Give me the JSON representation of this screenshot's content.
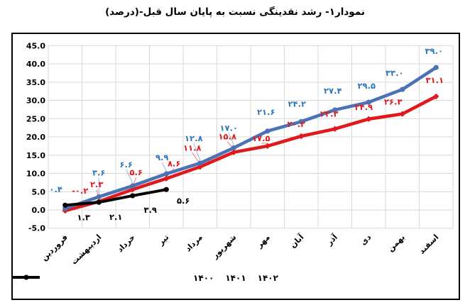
{
  "page": {
    "title": "نمودار۱- رشد نقدینگی نسبت به پایان سال قبل-(درصد)"
  },
  "chart_data": {
    "type": "line",
    "title": "نمودار۱- رشد نقدینگی نسبت به پایان سال قبل-(درصد)",
    "categories": [
      "فروردین",
      "اردیبهشت",
      "خرداد",
      "تیر",
      "مرداد",
      "شهریور",
      "مهر",
      "آبان",
      "آذر",
      "دی",
      "بهمن",
      "اسفند"
    ],
    "series": [
      {
        "name": "۱۴۰۰",
        "color": "#4a72b4",
        "label_color": "#2e78ba",
        "marker": "circle",
        "values": [
          0.4,
          3.6,
          6.6,
          9.9,
          12.8,
          17.0,
          21.6,
          24.2,
          27.4,
          29.5,
          33.0,
          39.0
        ],
        "labels": [
          "۰.۴",
          "۳.۶",
          "۶.۶",
          "۹.۹",
          "۱۲.۸",
          "۱۷.۰",
          "۲۱.۶",
          "۲۴.۲",
          "۲۷.۴",
          "۲۹.۵",
          "۳۳.۰",
          "۳۹.۰"
        ]
      },
      {
        "name": "۱۴۰۱",
        "color": "#e0191c",
        "label_color": "#e0191c",
        "marker": "diamond",
        "values": [
          -0.2,
          2.3,
          5.6,
          8.6,
          11.8,
          15.8,
          17.5,
          20.2,
          22.2,
          24.9,
          26.3,
          31.1
        ],
        "labels": [
          "-۰.۲",
          "۲.۳",
          "۵.۶",
          "۸.۶",
          "۱۱.۸",
          "۱۵.۸",
          "۱۷.۵",
          "۲۰.۲",
          "۲۲.۲",
          "۲۴.۹",
          "۲۶.۳",
          "۳۱.۱"
        ]
      },
      {
        "name": "۱۴۰۲",
        "color": "#000000",
        "label_color": "#000000",
        "marker": "circle",
        "values": [
          1.3,
          2.1,
          3.9,
          5.6
        ],
        "labels": [
          "۱.۳",
          "۲.۱",
          "۳.۹",
          "۵.۶"
        ]
      }
    ],
    "y_axis": {
      "min": -5,
      "max": 45,
      "step": 5,
      "tick_format": "one-decimal"
    },
    "x_axis": {
      "label_rotation_deg": -45
    },
    "legend": {
      "position": "bottom",
      "entries": [
        "۱۴۰۰",
        "۱۴۰۱",
        "۱۴۰۲"
      ]
    },
    "grid": {
      "horizontal": true,
      "vertical": true,
      "color": "#d9d9d9"
    },
    "frame_border_color": "#000000",
    "background": "#ffffff"
  }
}
